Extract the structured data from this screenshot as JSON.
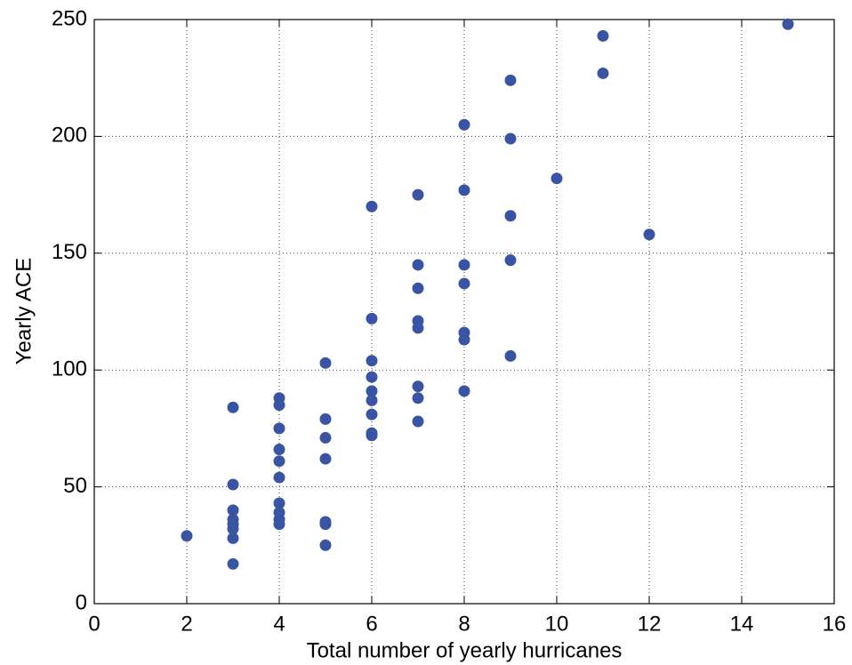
{
  "chart_data": {
    "type": "scatter",
    "x_label": "Total number of yearly hurricanes",
    "y_label": "Yearly ACE",
    "xlim": [
      0,
      16
    ],
    "xticks": [
      0,
      2,
      4,
      6,
      8,
      10,
      12,
      14,
      16
    ],
    "ylim": [
      0,
      250
    ],
    "yticks": [
      0,
      50,
      100,
      150,
      200,
      250
    ],
    "grid": true,
    "series": [
      {
        "color": "#3a54a4",
        "x": [
          2,
          3,
          3,
          3,
          3,
          3,
          3,
          3,
          3,
          4,
          4,
          4,
          4,
          4,
          4,
          4,
          4,
          4,
          4,
          5,
          5,
          5,
          5,
          5,
          5,
          5,
          6,
          6,
          6,
          6,
          6,
          6,
          6,
          6,
          6,
          7,
          7,
          7,
          7,
          7,
          7,
          7,
          7,
          8,
          8,
          8,
          8,
          8,
          8,
          8,
          9,
          9,
          9,
          9,
          9,
          10,
          11,
          11,
          12,
          15
        ],
        "values": [
          29,
          84,
          51,
          40,
          36,
          34,
          32,
          28,
          17,
          88,
          85,
          75,
          66,
          61,
          54,
          43,
          39,
          36,
          34,
          103,
          79,
          71,
          62,
          35,
          34,
          25,
          170,
          122,
          104,
          97,
          91,
          87,
          81,
          73,
          72,
          175,
          145,
          135,
          121,
          118,
          93,
          88,
          78,
          205,
          177,
          145,
          137,
          116,
          113,
          91,
          224,
          199,
          166,
          147,
          106,
          182,
          243,
          227,
          158,
          248
        ]
      }
    ]
  }
}
